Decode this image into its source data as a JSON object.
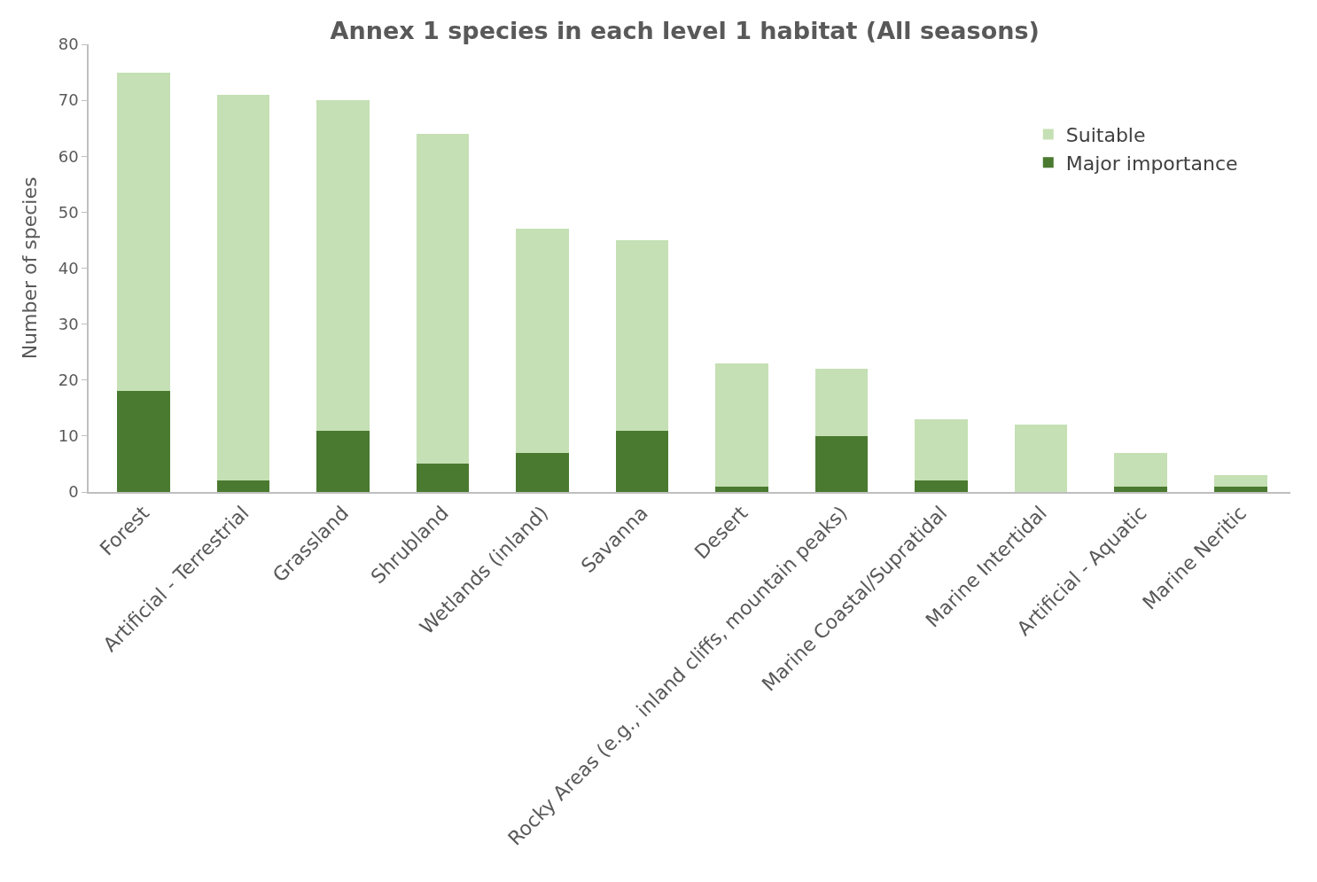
{
  "chart_data": {
    "type": "bar",
    "title": "Annex 1 species in each level 1 habitat (All seasons)",
    "ylabel": "Number of species",
    "categories": [
      "Forest",
      "Artificial - Terrestrial",
      "Grassland",
      "Shrubland",
      "Wetlands (inland)",
      "Savanna",
      "Desert",
      "Rocky Areas (e.g., inland cliffs, mountain peaks)",
      "Marine Coastal/Supratidal",
      "Marine Intertidal",
      "Artificial - Aquatic",
      "Marine Neritic"
    ],
    "stacked": true,
    "series": [
      {
        "name": "Major importance",
        "color": "#4a7a30",
        "values": [
          18,
          2,
          11,
          5,
          7,
          11,
          1,
          10,
          2,
          0,
          1,
          1
        ]
      },
      {
        "name": "Suitable",
        "color": "#c5e0b4",
        "values": [
          57,
          69,
          59,
          59,
          40,
          34,
          22,
          12,
          11,
          12,
          6,
          2
        ]
      }
    ],
    "ylim": [
      0,
      80
    ],
    "yticks": [
      0,
      10,
      20,
      30,
      40,
      50,
      60,
      70,
      80
    ],
    "legend": "top right"
  }
}
